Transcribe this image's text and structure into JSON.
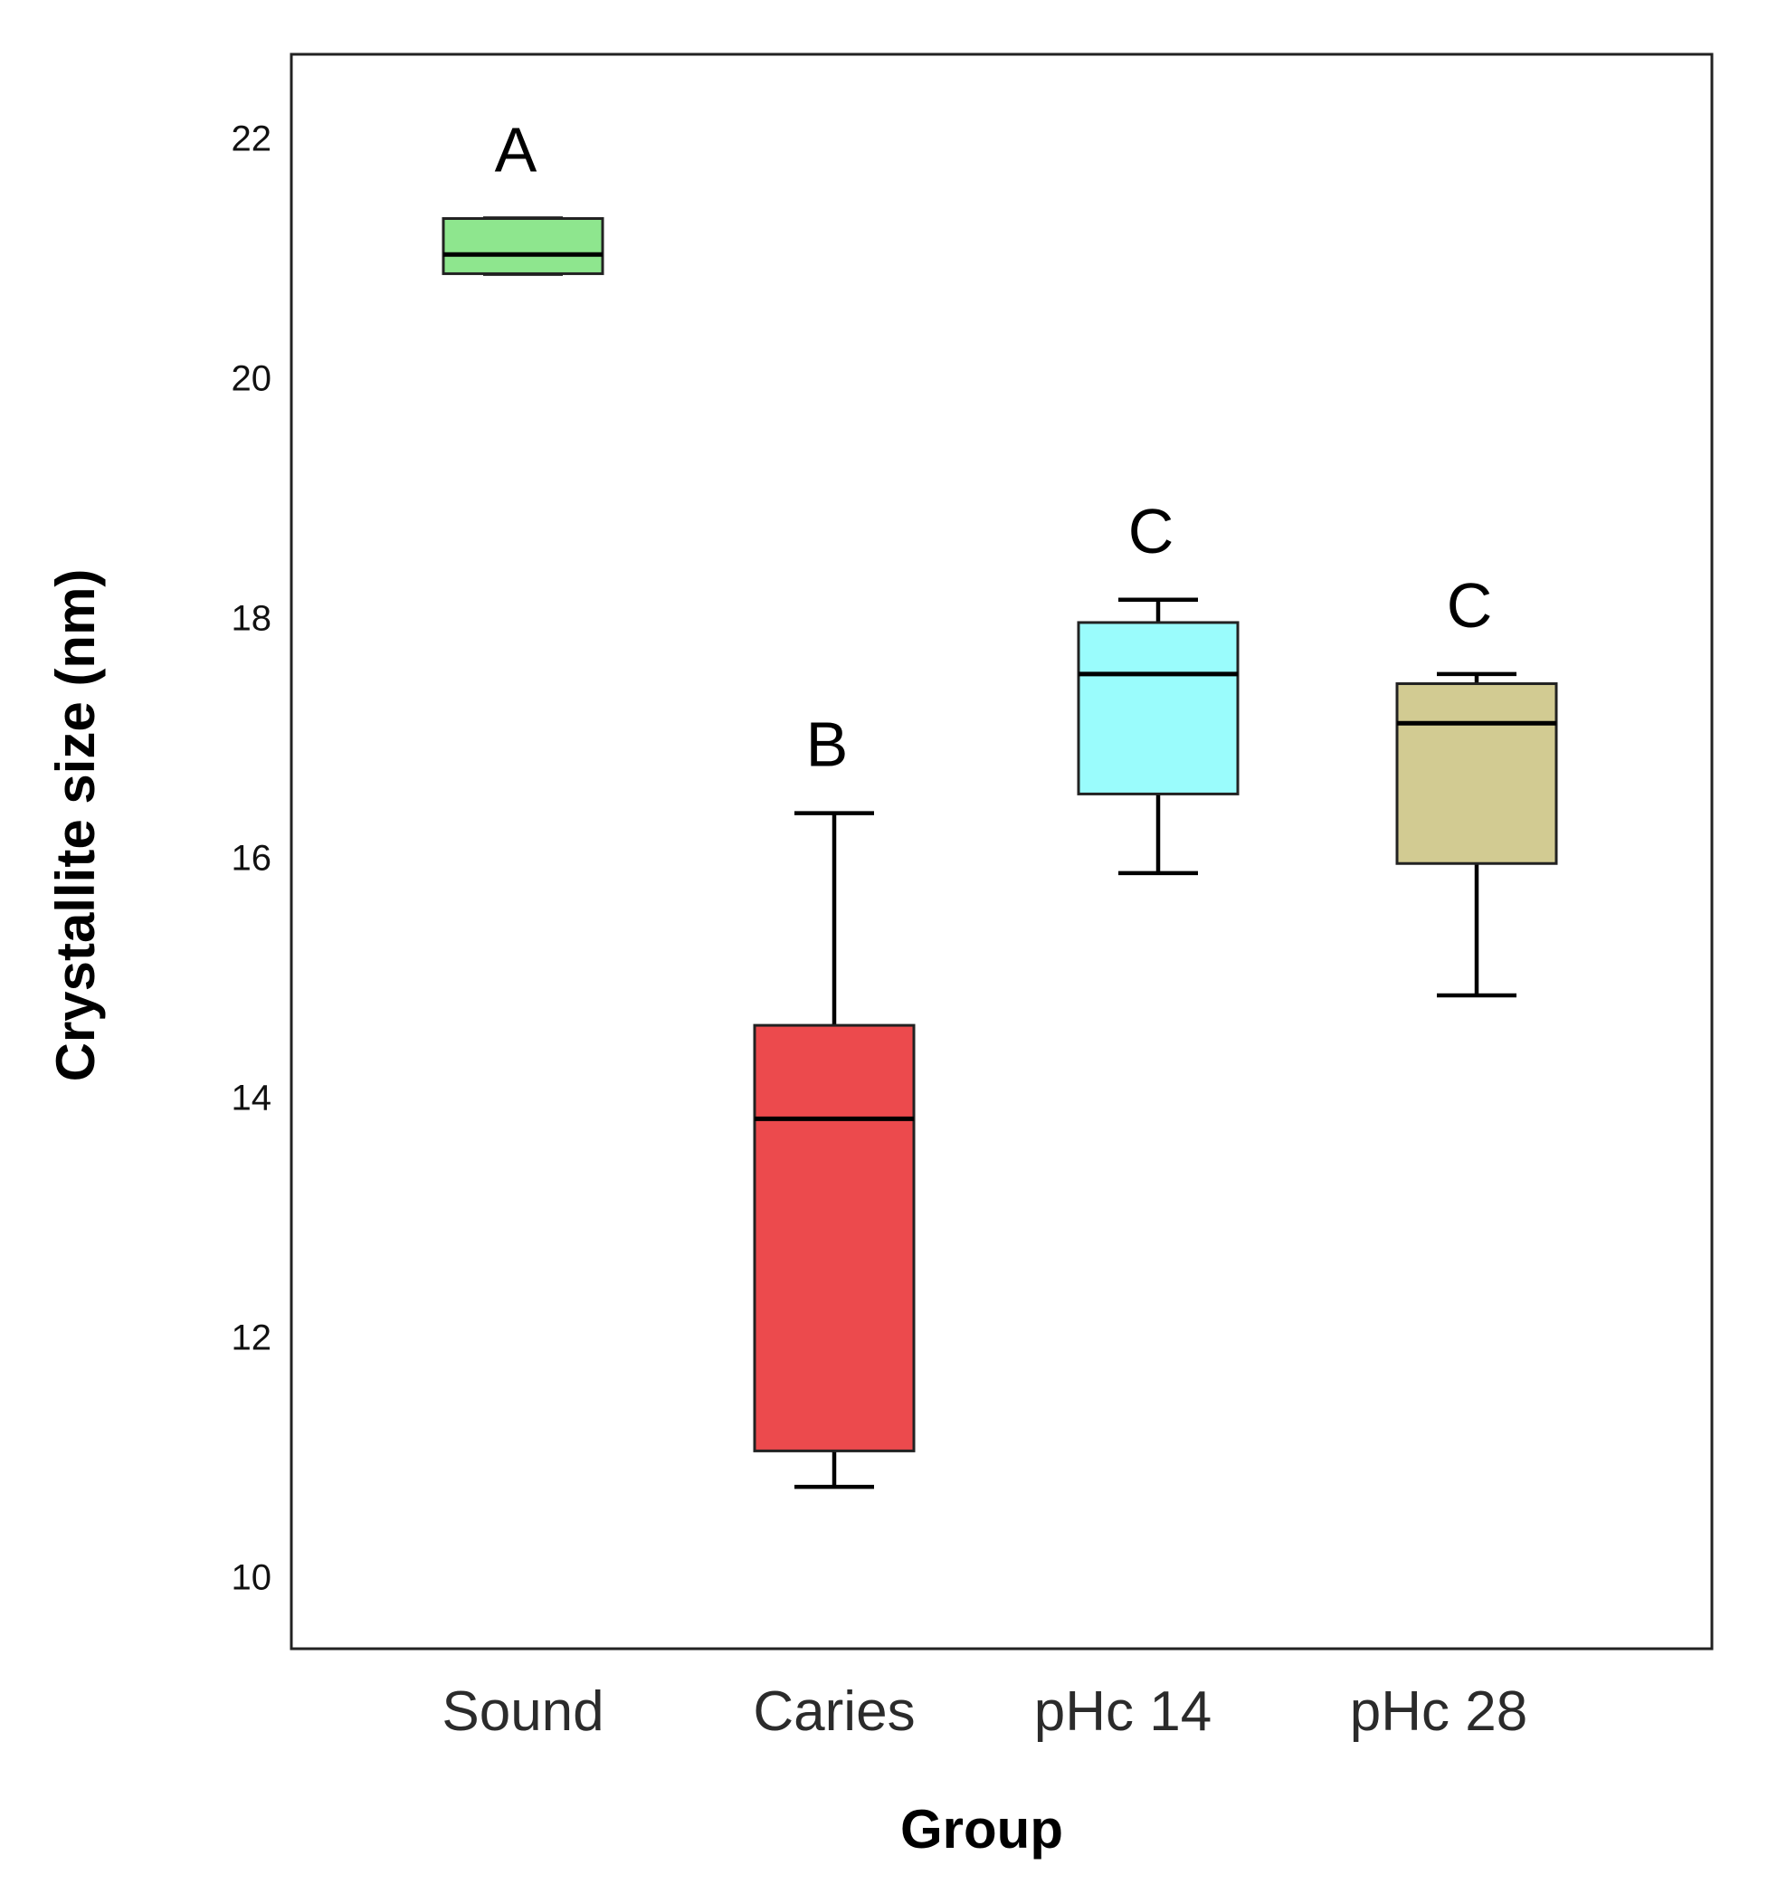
{
  "chart_data": {
    "type": "box",
    "title": "",
    "xlabel": "Group",
    "ylabel": "Crystallite size (nm)",
    "ylim": [
      9.4,
      22.7
    ],
    "yticks": [
      10,
      12,
      14,
      16,
      18,
      20,
      22
    ],
    "ytick_labels": [
      "10",
      "12",
      "14",
      "16",
      "18",
      "20",
      "22"
    ],
    "grid": false,
    "categories": [
      "Sound",
      "Caries",
      "pHc 14",
      "pHc 28"
    ],
    "boxes": [
      {
        "name": "Sound",
        "whisker_low": 20.87,
        "q1": 20.87,
        "median": 21.03,
        "q3": 21.33,
        "whisker_high": 21.33,
        "color": "#8ee68e",
        "letter": "A"
      },
      {
        "name": "Caries",
        "whisker_low": 10.75,
        "q1": 11.05,
        "median": 13.82,
        "q3": 14.6,
        "whisker_high": 16.37,
        "color": "#ec4a4d",
        "letter": "B"
      },
      {
        "name": "pHc 14",
        "whisker_low": 15.87,
        "q1": 16.53,
        "median": 17.53,
        "q3": 17.96,
        "whisker_high": 18.15,
        "color": "#9afcfc",
        "letter": "C"
      },
      {
        "name": "pHc 28",
        "whisker_low": 14.85,
        "q1": 15.95,
        "median": 17.12,
        "q3": 17.45,
        "whisker_high": 17.53,
        "color": "#d2cb92",
        "letter": "C"
      }
    ]
  }
}
